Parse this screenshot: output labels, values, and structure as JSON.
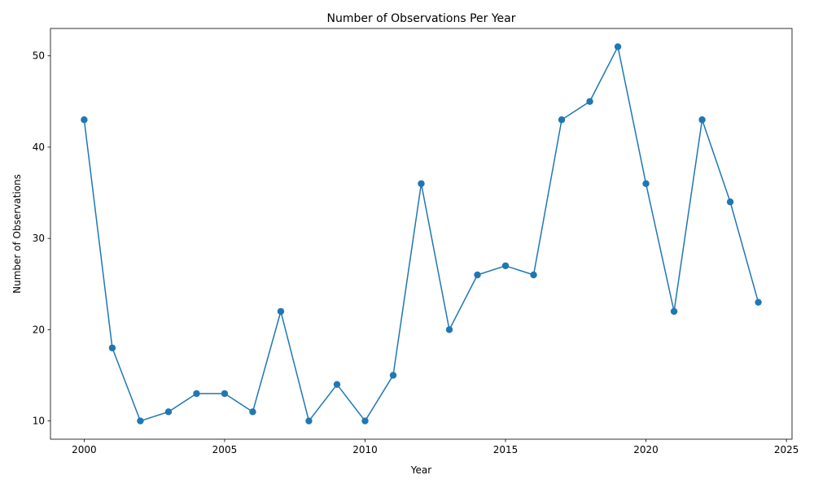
{
  "chart_data": {
    "type": "line",
    "title": "Number of Observations Per Year",
    "xlabel": "Year",
    "ylabel": "Number of Observations",
    "x": [
      2000,
      2001,
      2002,
      2003,
      2004,
      2005,
      2006,
      2007,
      2008,
      2009,
      2010,
      2011,
      2012,
      2013,
      2014,
      2015,
      2016,
      2017,
      2018,
      2019,
      2020,
      2021,
      2022,
      2023,
      2024
    ],
    "series": [
      {
        "values": [
          43,
          18,
          10,
          11,
          13,
          13,
          11,
          22,
          10,
          14,
          10,
          15,
          36,
          20,
          26,
          27,
          26,
          43,
          45,
          51,
          36,
          22,
          43,
          34,
          23
        ],
        "color": "#1f77b4",
        "marker": "circle"
      }
    ],
    "xlim": [
      1998.8,
      2025.2
    ],
    "ylim": [
      8.0,
      53.0
    ],
    "xticks": [
      "2000",
      "2005",
      "2010",
      "2015",
      "2020",
      "2025"
    ],
    "yticks": [
      "10",
      "20",
      "30",
      "40",
      "50"
    ],
    "grid": false,
    "legend": "none"
  }
}
